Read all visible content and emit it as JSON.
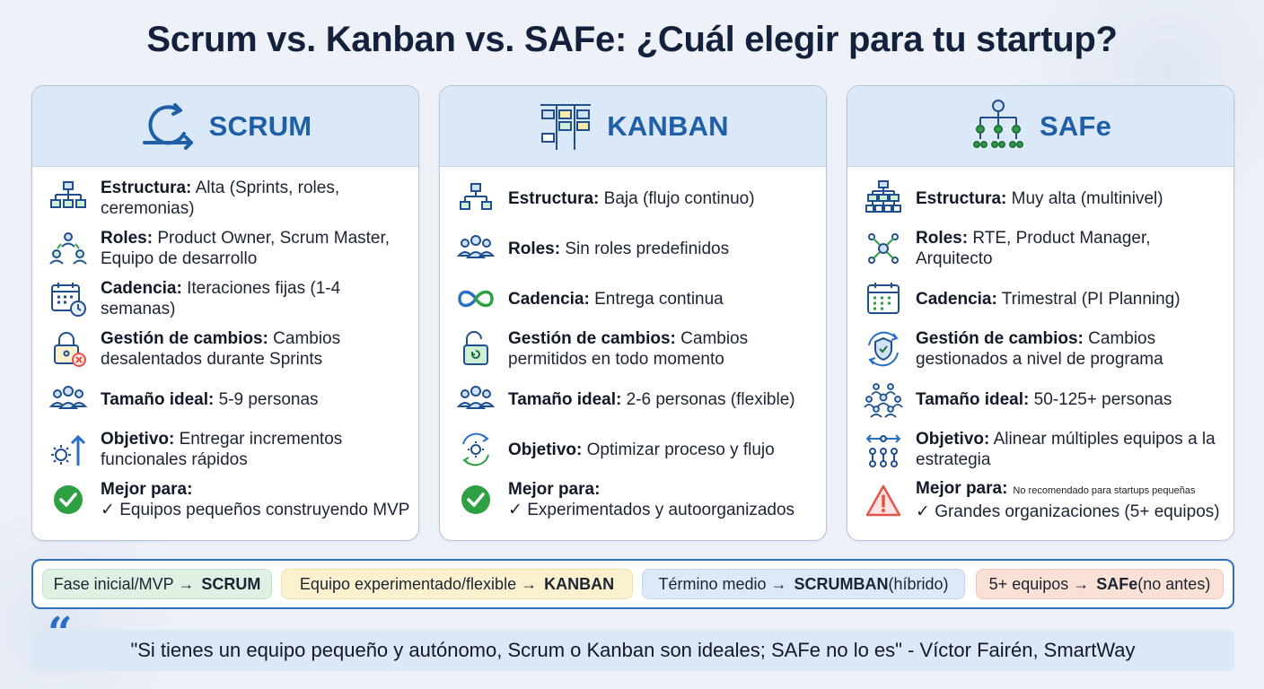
{
  "title": "Scrum vs. Kanban vs. SAFe: ¿Cuál elegir para tu startup?",
  "colors": {
    "accent": "#1f5fa8",
    "header_bg": "#dbe8f7",
    "green": "#2ea043",
    "warning": "#e5534b"
  },
  "cards": [
    {
      "name": "SCRUM",
      "icon": "scrum-cycle-icon",
      "rows": [
        {
          "icon": "hierarchy-icon",
          "label": "Estructura:",
          "value": "Alta (Sprints, roles, ceremonias)"
        },
        {
          "icon": "team-roles-icon",
          "label": "Roles:",
          "value": "Product Owner, Scrum Master, Equipo de desarrollo"
        },
        {
          "icon": "calendar-clock-icon",
          "label": "Cadencia:",
          "value": "Iteraciones fijas (1-4 semanas)"
        },
        {
          "icon": "locked-padlock-icon",
          "label": "Gestión de cambios:",
          "value": "Cambios desalentados durante Sprints"
        },
        {
          "icon": "people-group-icon",
          "label": "Tamaño ideal:",
          "value": "5-9 personas"
        },
        {
          "icon": "gear-arrow-up-icon",
          "label": "Objetivo:",
          "value": "Entregar incrementos funcionales rápidos"
        },
        {
          "icon": "check-circle-icon",
          "label": "Mejor para:",
          "value": "✓ Equipos pequeños construyendo MVP"
        }
      ]
    },
    {
      "name": "KANBAN",
      "icon": "kanban-board-icon",
      "rows": [
        {
          "icon": "hierarchy-icon",
          "label": "Estructura:",
          "value": "Baja (flujo continuo)"
        },
        {
          "icon": "people-group-icon",
          "label": "Roles:",
          "value": "Sin roles predefinidos"
        },
        {
          "icon": "infinity-icon",
          "label": "Cadencia:",
          "value": "Entrega continua"
        },
        {
          "icon": "open-padlock-icon",
          "label": "Gestión de cambios:",
          "value": "Cambios permitidos en todo momento"
        },
        {
          "icon": "people-group-icon",
          "label": "Tamaño ideal:",
          "value": "2-6 personas (flexible)"
        },
        {
          "icon": "gear-cycle-icon",
          "label": "Objetivo:",
          "value": "Optimizar proceso y flujo"
        },
        {
          "icon": "check-circle-icon",
          "label": "Mejor para:",
          "value": "✓ Experimentados y autoorganizados"
        }
      ]
    },
    {
      "name": "SAFe",
      "icon": "org-teams-icon",
      "rows": [
        {
          "icon": "multilevel-hierarchy-icon",
          "label": "Estructura:",
          "value": "Muy alta (multinivel)"
        },
        {
          "icon": "network-roles-icon",
          "label": "Roles:",
          "value": "RTE, Product Manager, Arquitecto"
        },
        {
          "icon": "calendar-icon",
          "label": "Cadencia:",
          "value": "Trimestral (PI Planning)"
        },
        {
          "icon": "shield-cycle-icon",
          "label": "Gestión de cambios:",
          "value": "Cambios gestionados a nivel de programa"
        },
        {
          "icon": "large-crowd-icon",
          "label": "Tamaño ideal:",
          "value": "50-125+ personas"
        },
        {
          "icon": "align-teams-icon",
          "label": "Objetivo:",
          "value": "Alinear múltiples equipos a la estrategia"
        },
        {
          "icon": "warning-triangle-icon",
          "label": "Mejor para:",
          "note": "No recomendado para startups pequeñas",
          "value": "✓ Grandes organizaciones (5+ equipos)"
        }
      ]
    }
  ],
  "tips": [
    {
      "pre": "Fase inicial/MVP →",
      "strong": "SCRUM",
      "post": "",
      "bg": "#dff1e3",
      "border": "#bfe3c8"
    },
    {
      "pre": "Equipo experimentado/flexible →",
      "strong": "KANBAN",
      "post": "",
      "bg": "#fbf1cf",
      "border": "#efe0a6"
    },
    {
      "pre": "Término medio →",
      "strong": "SCRUMBAN",
      "post": " (híbrido)",
      "bg": "#dce9f8",
      "border": "#c3d7ef"
    },
    {
      "pre": "5+ equipos →",
      "strong": "SAFe",
      "post": " (no antes)",
      "bg": "#fbe0d6",
      "border": "#f2c6b6"
    }
  ],
  "quote": "\"Si tienes un equipo pequeño y autónomo, Scrum o Kanban son ideales; SAFe no lo es\" - Víctor Fairén, SmartWay"
}
